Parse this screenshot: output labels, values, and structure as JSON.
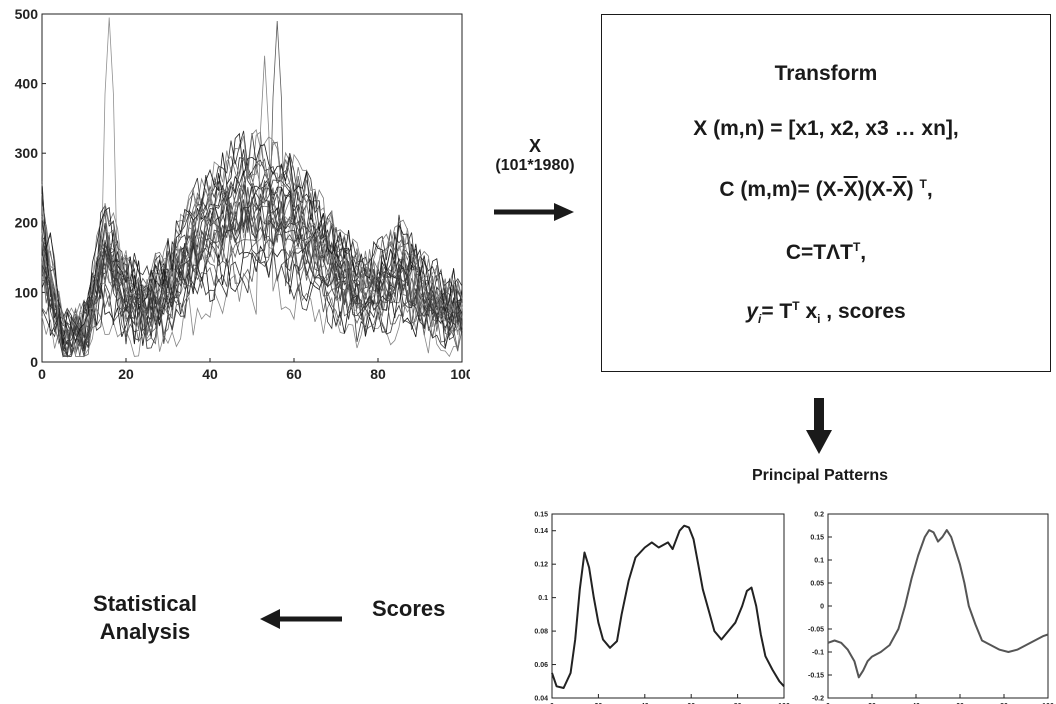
{
  "input_arrow": {
    "label": "X",
    "sublabel": "(101*1980)"
  },
  "transform_box": {
    "title": "Transform",
    "eq1": "X (m,n) = [x1, x2, x3 … xn],",
    "eq2_prefix": "C (m,m)= (X-",
    "eq2_bar1": "X",
    "eq2_mid": ")(X-",
    "eq2_bar2": "X",
    "eq2_suffix": ")",
    "eq2_sup": "T",
    "eq2_end": ",",
    "eq3_a": "C=T",
    "eq3_lambda": "Λ",
    "eq3_b": "T",
    "eq3_sup": "T",
    "eq3_end": ",",
    "eq4_y": "y",
    "eq4_i": "i",
    "eq4_eq": "= T",
    "eq4_sup": "T",
    "eq4_x": " x",
    "eq4_xi": "i",
    "eq4_end": " , scores"
  },
  "principal_patterns_label": "Principal Patterns",
  "scores_label": "Scores",
  "statistical_analysis_label_1": "Statistical",
  "statistical_analysis_label_2": "Analysis",
  "chart_data": [
    {
      "type": "line",
      "title": "",
      "xlabel": "",
      "ylabel": "",
      "xlim": [
        0,
        100
      ],
      "ylim": [
        0,
        500
      ],
      "xticks": [
        "0",
        "20",
        "40",
        "60",
        "80",
        "100"
      ],
      "yticks": [
        "0",
        "100",
        "200",
        "300",
        "400",
        "500"
      ],
      "series_count": 30,
      "mean_profile": {
        "x": [
          0,
          5,
          10,
          15,
          20,
          25,
          30,
          35,
          40,
          45,
          50,
          55,
          60,
          65,
          70,
          75,
          80,
          85,
          90,
          95,
          100
        ],
        "y": [
          150,
          30,
          40,
          140,
          90,
          75,
          95,
          140,
          170,
          190,
          200,
          195,
          175,
          150,
          115,
          95,
          95,
          120,
          95,
          70,
          65
        ]
      },
      "peaks": [
        {
          "x": 16,
          "y": 495
        },
        {
          "x": 56,
          "y": 490
        },
        {
          "x": 53,
          "y": 440
        }
      ]
    },
    {
      "type": "line",
      "title": "",
      "xlabel": "",
      "ylabel": "",
      "xlim": [
        0,
        100
      ],
      "ylim": [
        0.04,
        0.15
      ],
      "xticks": [
        "0",
        "20",
        "40",
        "60",
        "80",
        "100"
      ],
      "yticks": [
        "0.04",
        "0.06",
        "0.08",
        "0.1",
        "0.12",
        "0.14",
        "0.15"
      ],
      "x": [
        0,
        2,
        5,
        8,
        10,
        12,
        14,
        16,
        18,
        20,
        22,
        25,
        28,
        30,
        33,
        36,
        40,
        43,
        46,
        50,
        52,
        55,
        57,
        59,
        61,
        63,
        65,
        68,
        70,
        73,
        76,
        79,
        82,
        84,
        86,
        88,
        90,
        92,
        95,
        98,
        100
      ],
      "y": [
        0.055,
        0.047,
        0.046,
        0.055,
        0.075,
        0.105,
        0.127,
        0.118,
        0.1,
        0.085,
        0.075,
        0.07,
        0.074,
        0.09,
        0.11,
        0.124,
        0.13,
        0.133,
        0.13,
        0.133,
        0.129,
        0.14,
        0.143,
        0.142,
        0.135,
        0.12,
        0.105,
        0.09,
        0.08,
        0.075,
        0.08,
        0.085,
        0.095,
        0.104,
        0.106,
        0.095,
        0.078,
        0.065,
        0.057,
        0.05,
        0.047
      ]
    },
    {
      "type": "line",
      "title": "",
      "xlabel": "",
      "ylabel": "",
      "xlim": [
        0,
        100
      ],
      "ylim": [
        -0.2,
        0.2
      ],
      "xticks": [
        "0",
        "20",
        "40",
        "60",
        "80",
        "100"
      ],
      "yticks": [
        "-0.2",
        "-0.15",
        "-0.1",
        "-0.05",
        "0",
        "0.05",
        "0.1",
        "0.15",
        "0.2"
      ],
      "x": [
        0,
        3,
        6,
        9,
        12,
        14,
        16,
        18,
        20,
        24,
        28,
        32,
        35,
        38,
        41,
        44,
        46,
        48,
        50,
        52,
        54,
        56,
        58,
        60,
        62,
        64,
        67,
        70,
        74,
        78,
        82,
        86,
        90,
        94,
        98,
        100
      ],
      "y": [
        -0.08,
        -0.075,
        -0.08,
        -0.095,
        -0.12,
        -0.155,
        -0.14,
        -0.12,
        -0.11,
        -0.1,
        -0.085,
        -0.05,
        0.0,
        0.06,
        0.11,
        0.15,
        0.165,
        0.16,
        0.14,
        0.15,
        0.165,
        0.15,
        0.12,
        0.09,
        0.05,
        0.0,
        -0.04,
        -0.075,
        -0.085,
        -0.095,
        -0.1,
        -0.095,
        -0.085,
        -0.075,
        -0.065,
        -0.062
      ]
    }
  ]
}
